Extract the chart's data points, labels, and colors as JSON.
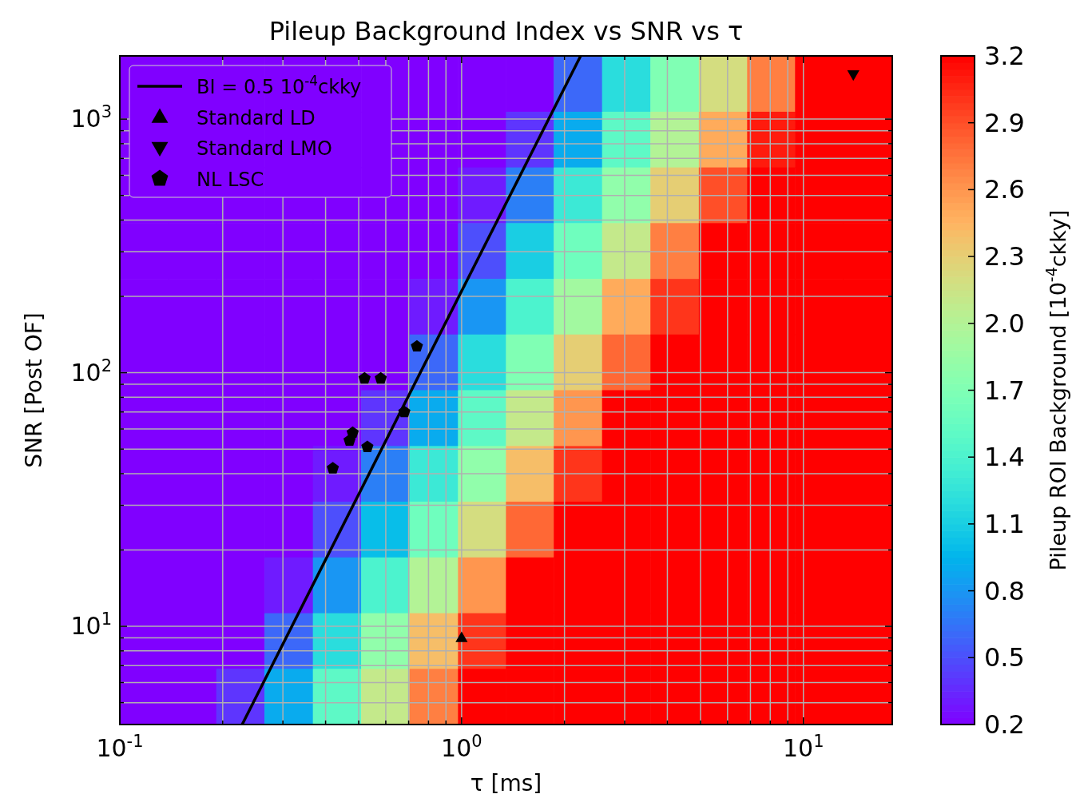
{
  "chart_data": {
    "type": "heatmap",
    "title": "Pileup Background Index vs SNR vs τ",
    "xlabel": "τ [ms]",
    "ylabel": "SNR [Post OF]",
    "clabel": "Pileup ROI Background [10$^{-4}$ckky]",
    "log": "xy",
    "grid": true,
    "legend": "top left",
    "xlim": [
      0.1,
      18.2
    ],
    "ylim": [
      4.1,
      1775
    ],
    "xticks": [
      {
        "value": 0.1,
        "label": "10$^{-1}$"
      },
      {
        "value": 0.2,
        "label": null
      },
      {
        "value": 0.3,
        "label": null
      },
      {
        "value": 0.4,
        "label": null
      },
      {
        "value": 0.5,
        "label": null
      },
      {
        "value": 0.6,
        "label": null
      },
      {
        "value": 0.7,
        "label": null
      },
      {
        "value": 0.8,
        "label": null
      },
      {
        "value": 0.9,
        "label": null
      },
      {
        "value": 1,
        "label": "10$^{0}$"
      },
      {
        "value": 2,
        "label": null
      },
      {
        "value": 3,
        "label": null
      },
      {
        "value": 4,
        "label": null
      },
      {
        "value": 5,
        "label": null
      },
      {
        "value": 6,
        "label": null
      },
      {
        "value": 7,
        "label": null
      },
      {
        "value": 8,
        "label": null
      },
      {
        "value": 9,
        "label": null
      },
      {
        "value": 10,
        "label": "10$^{1}$"
      }
    ],
    "yticks": [
      {
        "value": 5,
        "label": null
      },
      {
        "value": 6,
        "label": null
      },
      {
        "value": 7,
        "label": null
      },
      {
        "value": 8,
        "label": null
      },
      {
        "value": 9,
        "label": null
      },
      {
        "value": 10,
        "label": "10$^{1}$"
      },
      {
        "value": 20,
        "label": null
      },
      {
        "value": 30,
        "label": null
      },
      {
        "value": 40,
        "label": null
      },
      {
        "value": 50,
        "label": null
      },
      {
        "value": 60,
        "label": null
      },
      {
        "value": 70,
        "label": null
      },
      {
        "value": 80,
        "label": null
      },
      {
        "value": 90,
        "label": null
      },
      {
        "value": 100,
        "label": "10$^{2}$"
      },
      {
        "value": 200,
        "label": null
      },
      {
        "value": 300,
        "label": null
      },
      {
        "value": 400,
        "label": null
      },
      {
        "value": 500,
        "label": null
      },
      {
        "value": 600,
        "label": null
      },
      {
        "value": 700,
        "label": null
      },
      {
        "value": 800,
        "label": null
      },
      {
        "value": 900,
        "label": null
      },
      {
        "value": 1000,
        "label": "10$^{3}$"
      }
    ],
    "clim": [
      0.2,
      3.2
    ],
    "cticks": [
      0.2,
      0.5,
      0.8,
      1.1,
      1.4,
      1.7,
      {
        "value": 2,
        "label": "2.0"
      },
      2.3,
      2.6,
      2.9,
      3.2
    ],
    "x": [
      0.118,
      0.163,
      0.225,
      0.312,
      0.432,
      0.598,
      0.828,
      1.15,
      1.58,
      2.19,
      3.03,
      4.2,
      5.82,
      8.05,
      11.1,
      15.4
    ],
    "y": [
      1377,
      830,
      501,
      302,
      182,
      110,
      66.2,
      39.9,
      24.1,
      14.5,
      8.75,
      5.28
    ],
    "cells": [
      [
        0.2,
        0.2,
        0.2,
        0.2,
        0.2,
        0.2,
        0.2,
        0.2,
        0.2,
        0.6,
        1.2,
        1.7,
        2.2,
        2.7,
        3.2,
        3.2
      ],
      [
        0.2,
        0.2,
        0.2,
        0.2,
        0.2,
        0.2,
        0.2,
        0.2,
        0.4,
        0.9,
        1.5,
        2.0,
        2.5,
        3.1,
        3.2,
        3.2
      ],
      [
        0.2,
        0.2,
        0.2,
        0.2,
        0.2,
        0.2,
        0.2,
        0.3,
        0.7,
        1.3,
        1.8,
        2.3,
        2.9,
        3.2,
        3.2,
        3.2
      ],
      [
        0.2,
        0.2,
        0.2,
        0.2,
        0.2,
        0.2,
        0.2,
        0.5,
        1.1,
        1.6,
        2.1,
        2.7,
        3.2,
        3.2,
        3.2,
        3.2
      ],
      [
        0.2,
        0.2,
        0.2,
        0.2,
        0.2,
        0.2,
        0.3,
        0.8,
        1.4,
        1.9,
        2.5,
        3.0,
        3.2,
        3.2,
        3.2,
        3.2
      ],
      [
        0.2,
        0.2,
        0.2,
        0.2,
        0.2,
        0.2,
        0.6,
        1.2,
        1.7,
        2.3,
        2.8,
        3.2,
        3.2,
        3.2,
        3.2,
        3.2
      ],
      [
        0.2,
        0.2,
        0.2,
        0.2,
        0.2,
        0.4,
        0.9,
        1.5,
        2.1,
        2.6,
        3.2,
        3.2,
        3.2,
        3.2,
        3.2,
        3.2
      ],
      [
        0.2,
        0.2,
        0.2,
        0.2,
        0.3,
        0.7,
        1.3,
        1.8,
        2.4,
        3.0,
        3.2,
        3.2,
        3.2,
        3.2,
        3.2,
        3.2
      ],
      [
        0.2,
        0.2,
        0.2,
        0.2,
        0.5,
        1.0,
        1.6,
        2.2,
        2.8,
        3.2,
        3.2,
        3.2,
        3.2,
        3.2,
        3.2,
        3.2
      ],
      [
        0.2,
        0.2,
        0.2,
        0.3,
        0.8,
        1.4,
        2.0,
        2.6,
        3.2,
        3.2,
        3.2,
        3.2,
        3.2,
        3.2,
        3.2,
        3.2
      ],
      [
        0.2,
        0.2,
        0.2,
        0.6,
        1.2,
        1.8,
        2.4,
        3.0,
        3.2,
        3.2,
        3.2,
        3.2,
        3.2,
        3.2,
        3.2,
        3.2
      ],
      [
        0.2,
        0.2,
        0.4,
        0.9,
        1.5,
        2.1,
        2.7,
        3.2,
        3.2,
        3.2,
        3.2,
        3.2,
        3.2,
        3.2,
        3.2,
        3.2
      ]
    ],
    "series": [
      {
        "type": "line",
        "name": "BI = 0.5 10$^{-4}$ckky",
        "color": "#000000",
        "line_style": "solid",
        "x": [
          0.228,
          2.23
        ],
        "values": [
          4.1,
          1775
        ]
      },
      {
        "type": "scatter",
        "name": "Standard LD",
        "color": "#000000",
        "marker": "triangle",
        "x": [
          1.0
        ],
        "values": [
          9
        ]
      },
      {
        "type": "scatter",
        "name": "Standard LMO",
        "color": "#000000",
        "marker": "triangle-down",
        "x": [
          14
        ],
        "values": [
          1500
        ]
      },
      {
        "type": "scatter",
        "name": "NL LSC",
        "color": "#000000",
        "x": [
          0.42,
          0.47,
          0.48,
          0.53,
          0.52,
          0.58,
          0.68,
          0.74
        ],
        "values": [
          42,
          54,
          58,
          51,
          95,
          95,
          70,
          127
        ]
      }
    ]
  }
}
